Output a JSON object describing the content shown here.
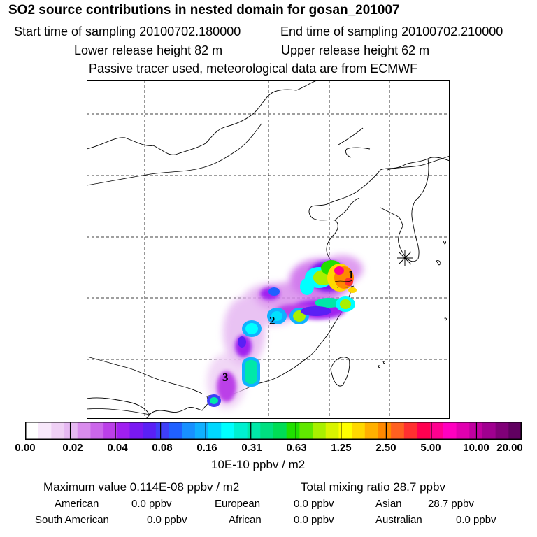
{
  "header": {
    "title": "SO2 source contributions in nested domain for gosan_201007",
    "start_time": "Start time of sampling 20100702.180000",
    "end_time": "End time of sampling 20100702.210000",
    "lower_height": "Lower release height   82 m",
    "upper_height": "Upper release height   62 m",
    "note": "Passive tracer used, meteorological data are from ECMWF"
  },
  "map": {
    "source_labels": [
      "1",
      "2",
      "3"
    ],
    "receptor_marker": "asterisk-icon"
  },
  "colorbar": {
    "ticks": [
      "0.00",
      "0.02",
      "0.04",
      "0.08",
      "0.16",
      "0.31",
      "0.63",
      "1.25",
      "2.50",
      "5.00",
      "10.00",
      "20.00"
    ],
    "colors": [
      "#ffffff",
      "#f8e8fb",
      "#efd0f5",
      "#e6b8f2",
      "#d98ced",
      "#cb66ea",
      "#bb3fe8",
      "#a020f0",
      "#7a18f2",
      "#5a20f5",
      "#3f3ff8",
      "#2060ff",
      "#1890ff",
      "#10b0ff",
      "#00d8ff",
      "#00ffff",
      "#00f0d0",
      "#00e8a8",
      "#00e080",
      "#00dd55",
      "#20e000",
      "#60e800",
      "#a8f000",
      "#d8f400",
      "#ffff00",
      "#ffd800",
      "#ffb000",
      "#ff8800",
      "#ff6020",
      "#ff3030",
      "#ff0050",
      "#ff0090",
      "#ff00c0",
      "#e000b0",
      "#c000a0",
      "#a00090",
      "#800078",
      "#600060"
    ],
    "units": "10E-10 ppbv / m2"
  },
  "summary": {
    "max_value": "Maximum value  0.114E-08 ppbv / m2",
    "total": "Total mixing ratio       28.7 ppbv",
    "american_label": "American",
    "american_value": "0.0 ppbv",
    "european_label": "European",
    "european_value": "0.0 ppbv",
    "asian_label": "Asian",
    "asian_value": "28.7 ppbv",
    "south_american_label": "South American",
    "south_american_value": "0.0 ppbv",
    "african_label": "African",
    "african_value": "0.0 ppbv",
    "australian_label": "Australian",
    "australian_value": "0.0 ppbv"
  }
}
